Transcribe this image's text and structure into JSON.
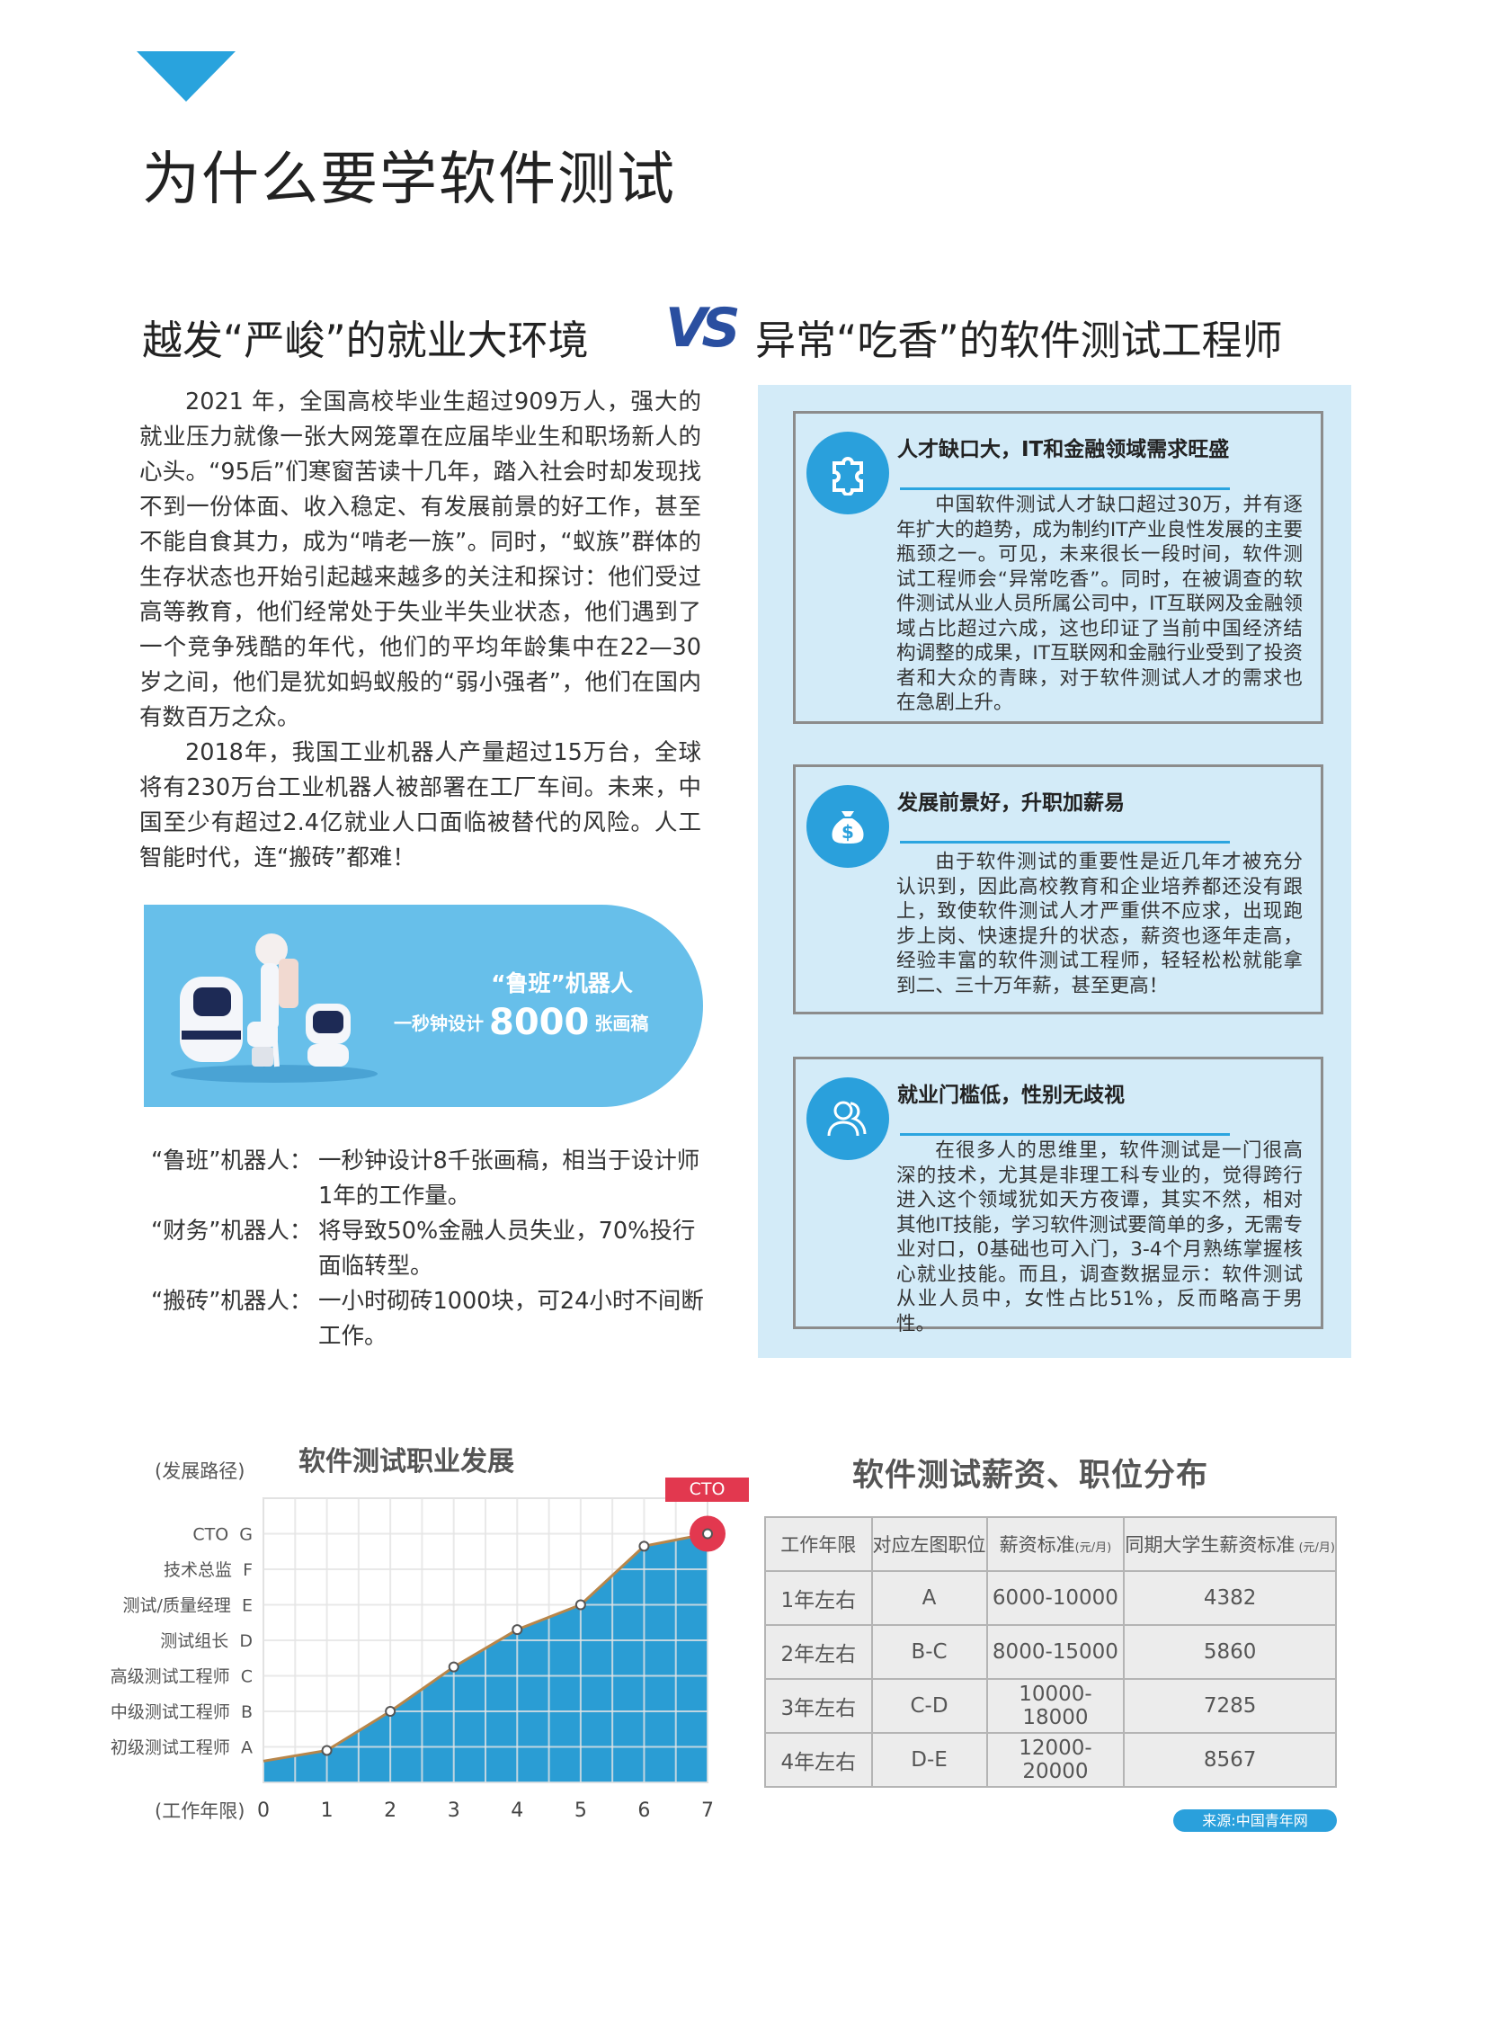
{
  "header": {
    "title": "为什么要学软件测试",
    "subtitle_left": "越发“严峻”的就业大环境",
    "vs": "VS",
    "subtitle_right": "异常“吃香”的软件测试工程师"
  },
  "intro": {
    "paragraphs": [
      "2021 年，全国高校毕业生超过909万人，强大的就业压力就像一张大网笼罩在应届毕业生和职场新人的心头。“95后”们寒窗苦读十几年，踏入社会时却发现找不到一份体面、收入稳定、有发展前景的好工作，甚至不能自食其力，成为“啃老一族”。同时，“蚁族”群体的生存状态也开始引起越来越多的关注和探讨：他们受过高等教育，他们经常处于失业半失业状态，他们遇到了一个竞争残酷的年代，他们的平均年龄集中在22—30岁之间，他们是犹如蚂蚁般的“弱小强者”，他们在国内有数百万之众。",
      "2018年，我国工业机器人产量超过15万台，全球将有230万台工业机器人被部署在工厂车间。未来，中国至少有超过2.4亿就业人口面临被替代的风险。人工智能时代，连“搬砖”都难！"
    ]
  },
  "banner": {
    "line1": "“鲁班”机器人",
    "line2_prefix": "一秒钟设计",
    "line2_number": "8000",
    "line2_suffix": "张画稿"
  },
  "robots": [
    {
      "label": "“鲁班”机器人：",
      "text": "一秒钟设计8千张画稿，相当于设计师1年的工作量。"
    },
    {
      "label": "“财务”机器人：",
      "text": "将导致50%金融人员失业，70%投行面临转型。"
    },
    {
      "label": "“搬砖”机器人：",
      "text": "一小时砌砖1000块，可24小时不间断工作。"
    }
  ],
  "cards": [
    {
      "icon": "puzzle-icon",
      "title": "人才缺口大，IT和金融领域需求旺盛",
      "body": "中国软件测试人才缺口超过30万，并有逐年扩大的趋势，成为制约IT产业良性发展的主要瓶颈之一。可见，未来很长一段时间，软件测试工程师会“异常吃香”。同时，在被调查的软件测试从业人员所属公司中，IT互联网及金融领域占比超过六成，这也印证了当前中国经济结构调整的成果，IT互联网和金融行业受到了投资者和大众的青睐，对于软件测试人才的需求也在急剧上升。"
    },
    {
      "icon": "money-bag-icon",
      "title": "发展前景好，升职加薪易",
      "body": "由于软件测试的重要性是近几年才被充分认识到，因此高校教育和企业培养都还没有跟上，致使软件测试人才严重供不应求，出现跑步上岗、快速提升的状态，薪资也逐年走高，经验丰富的软件测试工程师，轻轻松松就能拿到二、三十万年薪，甚至更高！"
    },
    {
      "icon": "users-icon",
      "title": "就业门槛低，性别无歧视",
      "body": "在很多人的思维里，软件测试是一门很高深的技术，尤其是非理工科专业的，觉得跨行进入这个领域犹如天方夜谭，其实不然，相对其他IT技能，学习软件测试要简单的多，无需专业对口，0基础也可入门，3-4个月熟练掌握核心就业技能。而且，调查数据显示：软件测试从业人员中，女性占比51%，反而略高于男性。"
    }
  ],
  "chart_data": {
    "type": "area",
    "title": "软件测试职业发展",
    "ylabel": "(发展路径)",
    "xlabel": "(工作年限)",
    "x": [
      0,
      1,
      2,
      3,
      4,
      5,
      6,
      7
    ],
    "y": [
      0.6,
      0.9,
      2.0,
      3.25,
      4.3,
      5.0,
      6.65,
      7.0
    ],
    "xlim": [
      0,
      7
    ],
    "ylim": [
      0,
      8
    ],
    "y_ticks": [
      {
        "value": 1,
        "label": "初级测试工程师  A"
      },
      {
        "value": 2,
        "label": "中级测试工程师  B"
      },
      {
        "value": 3,
        "label": "高级测试工程师  C"
      },
      {
        "value": 4,
        "label": "测试组长  D"
      },
      {
        "value": 5,
        "label": "测试/质量经理  E"
      },
      {
        "value": 6,
        "label": "技术总监  F"
      },
      {
        "value": 7,
        "label": "CTO  G"
      }
    ],
    "x_ticks": [
      "0",
      "1",
      "2",
      "3",
      "4",
      "5",
      "6",
      "7"
    ],
    "annotation": "CTO",
    "grid": true,
    "colors": {
      "fill": "#2a9dd4",
      "line": "#b8864a",
      "highlight": "#e2384f"
    }
  },
  "salary_table": {
    "title": "软件测试薪资、职位分布",
    "headers": [
      {
        "text": "工作年限",
        "unit": ""
      },
      {
        "text": "对应左图职位",
        "unit": ""
      },
      {
        "text": "薪资标准",
        "unit": "(元/月)"
      },
      {
        "text": "同期大学生薪资标准",
        "unit": " (元/月)"
      }
    ],
    "rows": [
      [
        "1年左右",
        "A",
        "6000-10000",
        "4382"
      ],
      [
        "2年左右",
        "B-C",
        "8000-15000",
        "5860"
      ],
      [
        "3年左右",
        "C-D",
        "10000-18000",
        "7285"
      ],
      [
        "4年左右",
        "D-E",
        "12000-20000",
        "8567"
      ]
    ],
    "source": "来源:中国青年网"
  }
}
